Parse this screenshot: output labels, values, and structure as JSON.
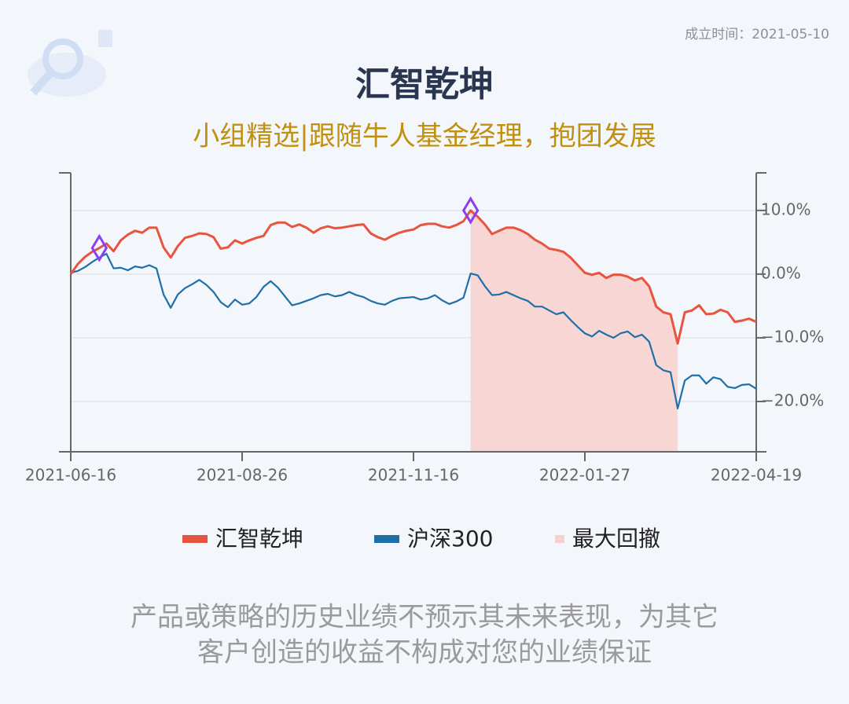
{
  "chart_data": {
    "type": "line",
    "title": "汇智乾坤",
    "subtitle": "小组精选|跟随牛人基金经理，抱团发展",
    "founded": "成立时间：2021-05-10",
    "categories": [
      "2021-06-16",
      null,
      null,
      null,
      null,
      null,
      null,
      null,
      null,
      null,
      null,
      null,
      null,
      null,
      null,
      null,
      null,
      null,
      null,
      null,
      null,
      null,
      null,
      null,
      "2021-08-26",
      null,
      null,
      null,
      null,
      null,
      null,
      null,
      null,
      null,
      null,
      null,
      null,
      null,
      null,
      null,
      null,
      null,
      null,
      null,
      null,
      null,
      null,
      null,
      "2021-11-16",
      null,
      null,
      null,
      null,
      null,
      null,
      null,
      null,
      null,
      null,
      null,
      null,
      null,
      null,
      null,
      null,
      null,
      null,
      null,
      null,
      null,
      null,
      null,
      "2022-01-27",
      null,
      null,
      null,
      null,
      null,
      null,
      null,
      null,
      null,
      null,
      null,
      null,
      null,
      null,
      null,
      null,
      null,
      null,
      null,
      null,
      null,
      null,
      null,
      "2022-04-19"
    ],
    "series": [
      {
        "name": "汇智乾坤",
        "color": "#e8553f",
        "values": [
          0.0,
          1.6,
          2.7,
          3.5,
          4.1,
          4.8,
          3.6,
          5.3,
          6.2,
          6.8,
          6.5,
          7.3,
          7.3,
          4.2,
          2.6,
          4.4,
          5.7,
          6.0,
          6.4,
          6.3,
          5.8,
          4.0,
          4.2,
          5.3,
          4.8,
          5.3,
          5.7,
          6.0,
          7.7,
          8.1,
          8.1,
          7.4,
          7.8,
          7.3,
          6.5,
          7.2,
          7.5,
          7.2,
          7.3,
          7.5,
          7.7,
          7.8,
          6.4,
          5.8,
          5.4,
          6.0,
          6.5,
          6.8,
          7.0,
          7.7,
          7.9,
          7.9,
          7.5,
          7.3,
          7.7,
          8.3,
          10.0,
          9.0,
          7.8,
          6.3,
          6.8,
          7.3,
          7.3,
          6.9,
          6.3,
          5.4,
          4.8,
          4.0,
          3.8,
          3.5,
          2.6,
          1.4,
          0.2,
          -0.1,
          0.2,
          -0.6,
          -0.1,
          -0.1,
          -0.4,
          -1.0,
          -0.6,
          -1.9,
          -5.1,
          -6.0,
          -6.3,
          -10.9,
          -6.0,
          -5.7,
          -4.9,
          -6.3,
          -6.2,
          -5.6,
          -6.0,
          -7.5,
          -7.3,
          -7.0,
          -7.5
        ]
      },
      {
        "name": "沪深300",
        "color": "#1f6fa8",
        "values": [
          0.2,
          0.5,
          1.1,
          1.9,
          2.6,
          3.2,
          0.9,
          1.0,
          0.6,
          1.2,
          1.0,
          1.4,
          0.9,
          -3.2,
          -5.3,
          -3.2,
          -2.2,
          -1.6,
          -0.9,
          -1.7,
          -2.8,
          -4.4,
          -5.2,
          -4.0,
          -4.8,
          -4.6,
          -3.6,
          -2.0,
          -1.1,
          -2.1,
          -3.5,
          -4.9,
          -4.6,
          -4.2,
          -3.8,
          -3.3,
          -3.1,
          -3.5,
          -3.3,
          -2.8,
          -3.3,
          -3.6,
          -4.2,
          -4.6,
          -4.8,
          -4.2,
          -3.8,
          -3.7,
          -3.6,
          -4.0,
          -3.8,
          -3.3,
          -4.1,
          -4.7,
          -4.3,
          -3.7,
          0.1,
          -0.2,
          -1.9,
          -3.3,
          -3.2,
          -2.8,
          -3.3,
          -3.8,
          -4.2,
          -5.1,
          -5.1,
          -5.7,
          -6.3,
          -6.0,
          -7.2,
          -8.3,
          -9.3,
          -9.8,
          -8.9,
          -9.5,
          -10.0,
          -9.3,
          -9.0,
          -9.9,
          -9.5,
          -10.6,
          -14.3,
          -15.1,
          -15.4,
          -21.1,
          -16.7,
          -15.9,
          -15.9,
          -17.2,
          -16.2,
          -16.5,
          -17.7,
          -17.9,
          -17.4,
          -17.3,
          -18.0
        ]
      }
    ],
    "drawdown": {
      "name": "最大回撤",
      "color": "#f8d0cd",
      "start": 56,
      "end": 85
    },
    "highlights": [
      4,
      56
    ],
    "highlight_color": "#8a3ff0",
    "ylim": [
      -27.9,
      15.9
    ],
    "yticks": [
      {
        "value": 10,
        "label": "10.0%"
      },
      {
        "value": 0,
        "label": "0.0%"
      },
      {
        "value": -10,
        "label": "−10.0%"
      },
      {
        "value": -20,
        "label": "−20.0%"
      }
    ],
    "grid": true,
    "disclaimer": [
      "产品或策略的历史业绩不预示其未来表现，为其它",
      "客户创造的收益不构成对您的业绩保证"
    ]
  }
}
